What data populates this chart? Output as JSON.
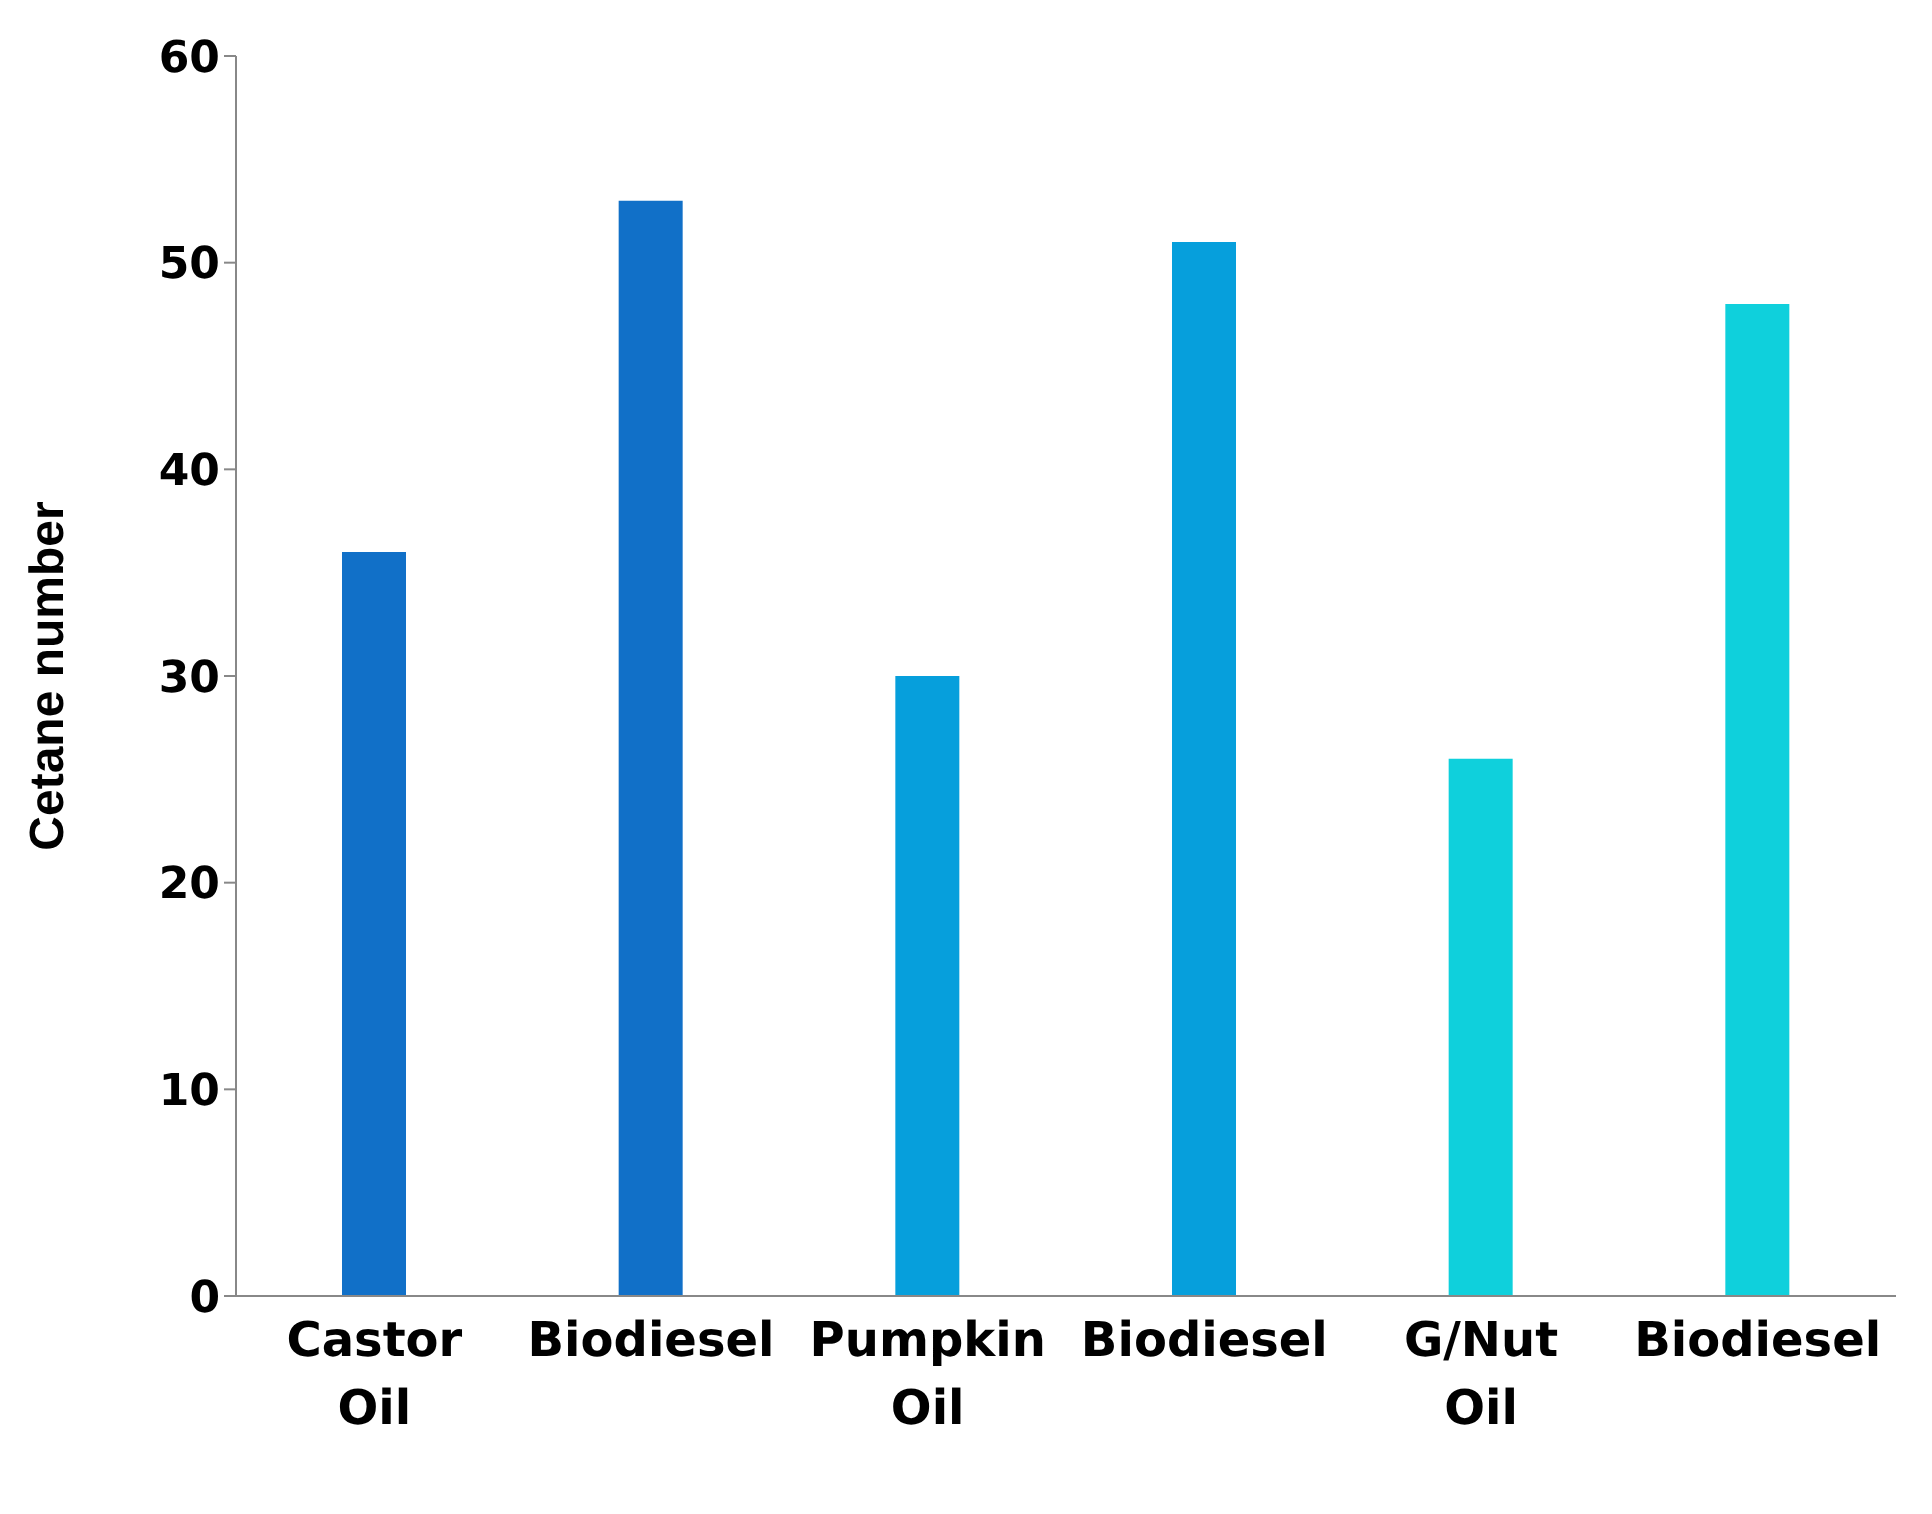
{
  "chart_data": {
    "type": "bar",
    "ylabel": "Cetane number",
    "categories": [
      "Castor Oil",
      "Biodiesel",
      "Pumpkin Oil",
      "Biodiesel",
      "G/Nut Oil",
      "Biodiesel"
    ],
    "values": [
      36,
      53,
      30,
      51,
      26,
      48
    ],
    "colors": [
      "#1170c8",
      "#1170c8",
      "#069fdc",
      "#069fdc",
      "#0fd0dc",
      "#0fd0dc"
    ],
    "ylim": [
      0,
      60
    ],
    "yticks": [
      0,
      10,
      20,
      30,
      40,
      50,
      60
    ],
    "grid": false,
    "legend": false
  }
}
